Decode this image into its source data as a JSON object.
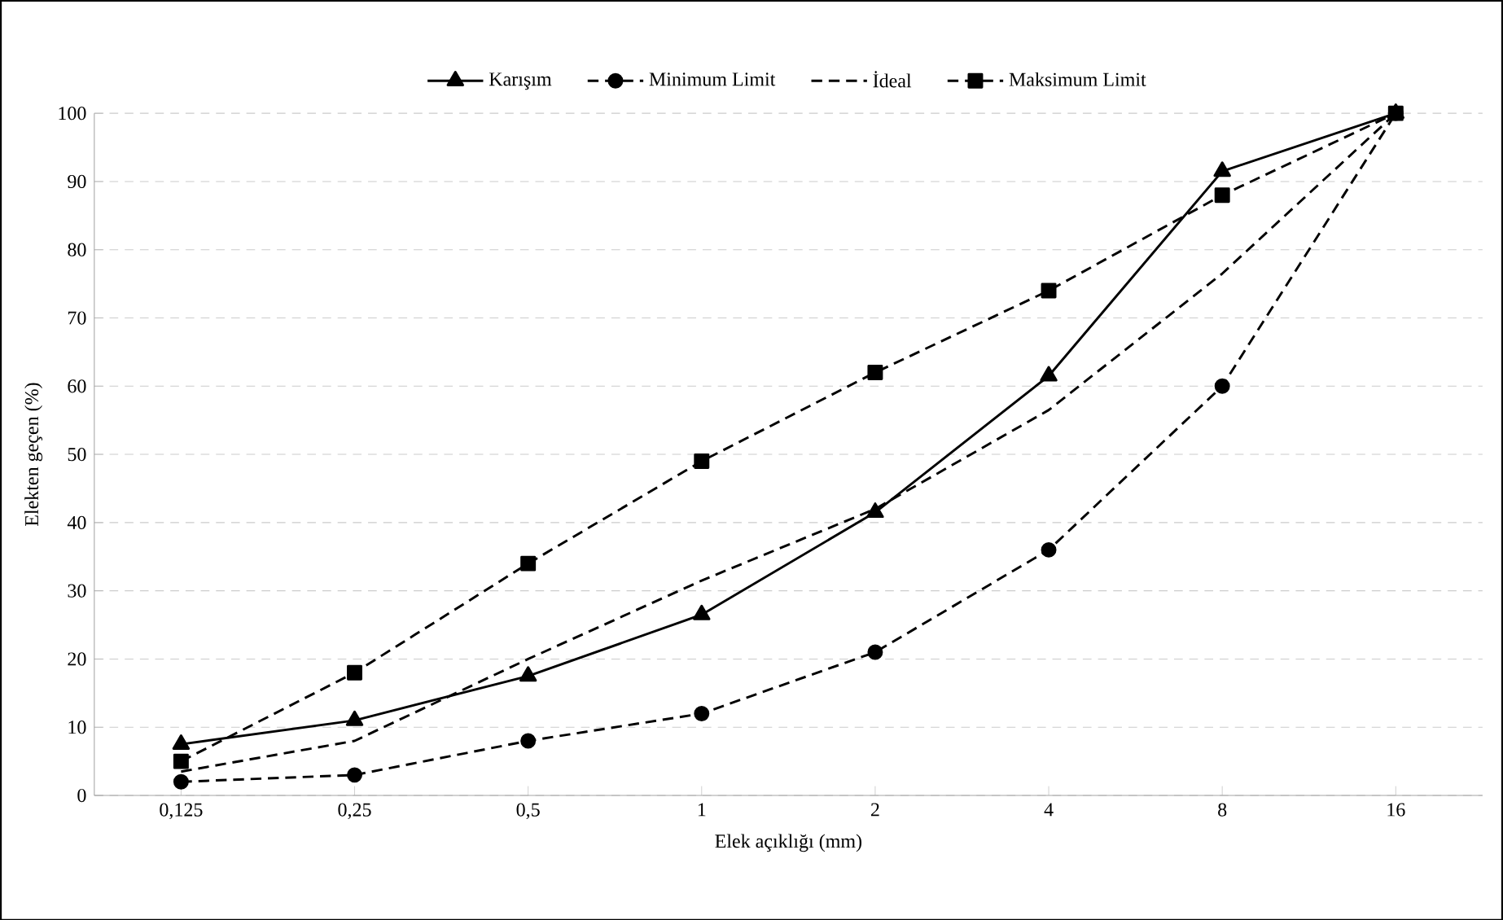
{
  "chart_data": {
    "type": "line",
    "xlabel": "Elek açıklığı (mm)",
    "ylabel": "Elekten geçen (%)",
    "categories": [
      "0,125",
      "0,25",
      "0,5",
      "1",
      "2",
      "4",
      "8",
      "16"
    ],
    "series": [
      {
        "name": "Karışım",
        "color": "#000000",
        "marker": "triangle",
        "line_style": "solid",
        "values": [
          7.5,
          11,
          17.5,
          26.5,
          41.5,
          61.5,
          91.5,
          100
        ]
      },
      {
        "name": "Minimum Limit",
        "color": "#000000",
        "marker": "circle",
        "line_style": "dashed",
        "values": [
          2,
          3,
          8,
          12,
          21,
          36,
          60,
          100
        ]
      },
      {
        "name": "İdeal",
        "color": "#000000",
        "marker": "none",
        "line_style": "dashed",
        "values": [
          3.5,
          8,
          20,
          31.5,
          42,
          56.5,
          76.5,
          100
        ]
      },
      {
        "name": "Maksimum Limit",
        "color": "#000000",
        "marker": "square",
        "line_style": "dashed",
        "values": [
          5,
          18,
          34,
          49,
          62,
          74,
          88,
          100
        ]
      }
    ],
    "ylim": [
      0,
      100
    ],
    "yticks": [
      0,
      10,
      20,
      30,
      40,
      50,
      60,
      70,
      80,
      90,
      100
    ],
    "grid": "y",
    "legend": "top"
  }
}
